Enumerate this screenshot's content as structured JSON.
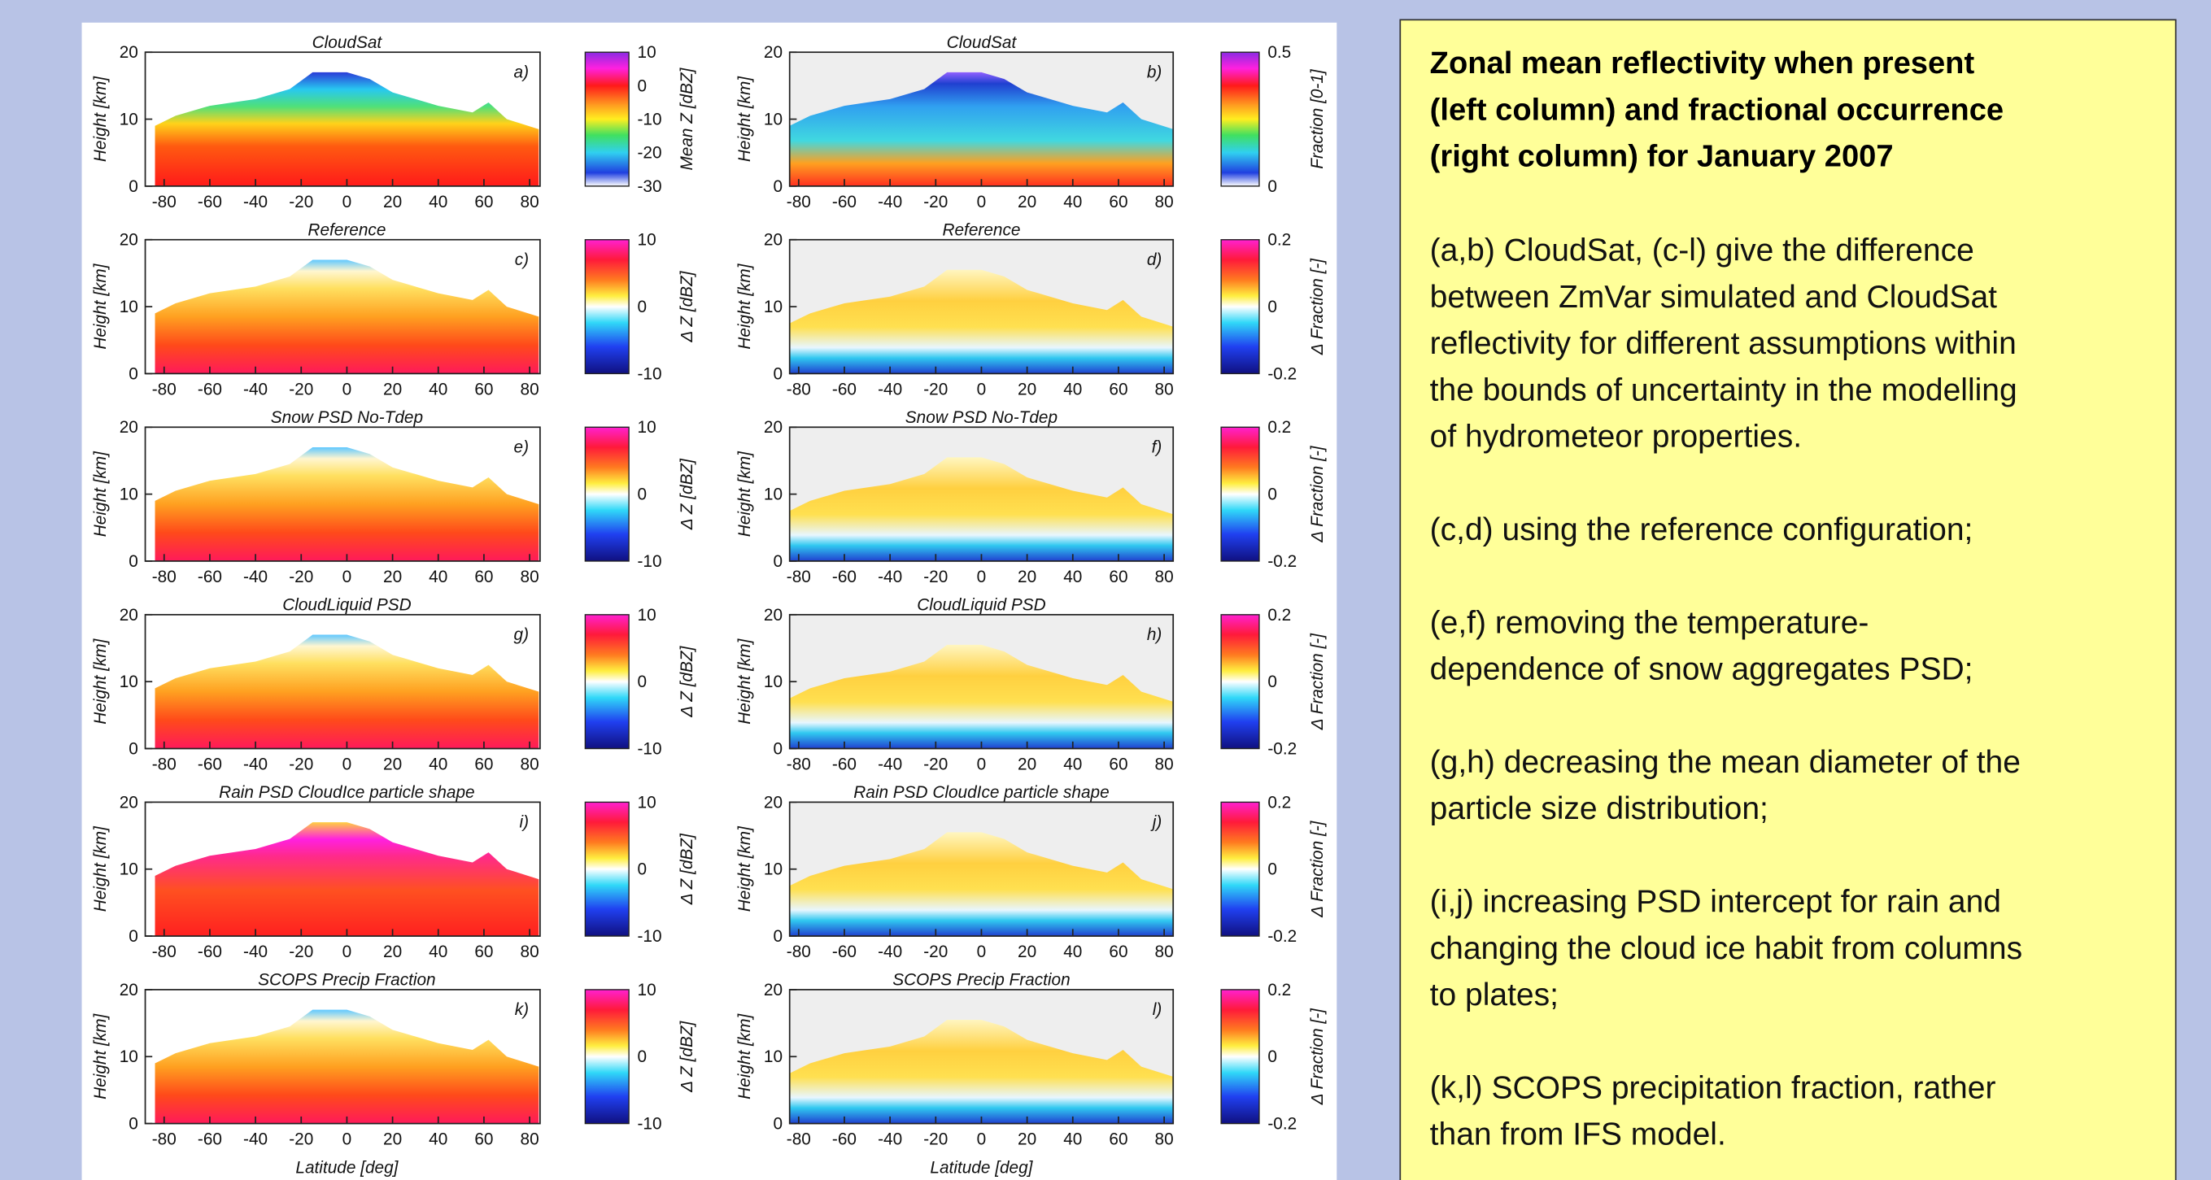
{
  "figure": {
    "panels": [
      {
        "title": "CloudSat",
        "letter": "a)",
        "colorbar_label": "Mean Z [dBZ]",
        "colorbar_ticks": [
          "10",
          "0",
          "-10",
          "-20",
          "-30"
        ]
      },
      {
        "title": "CloudSat",
        "letter": "b)",
        "colorbar_label": "Fraction [0-1]",
        "colorbar_ticks": [
          "0.5",
          "0"
        ]
      },
      {
        "title": "Reference",
        "letter": "c)",
        "colorbar_label": "Δ Z [dBZ]",
        "colorbar_ticks": [
          "10",
          "0",
          "-10"
        ]
      },
      {
        "title": "Reference",
        "letter": "d)",
        "colorbar_label": "Δ Fraction [-]",
        "colorbar_ticks": [
          "0.2",
          "0",
          "-0.2"
        ]
      },
      {
        "title": "Snow PSD No-Tdep",
        "letter": "e)",
        "colorbar_label": "Δ Z [dBZ]",
        "colorbar_ticks": [
          "10",
          "0",
          "-10"
        ]
      },
      {
        "title": "Snow PSD No-Tdep",
        "letter": "f)",
        "colorbar_label": "Δ Fraction [-]",
        "colorbar_ticks": [
          "0.2",
          "0",
          "-0.2"
        ]
      },
      {
        "title": "CloudLiquid PSD",
        "letter": "g)",
        "colorbar_label": "Δ Z [dBZ]",
        "colorbar_ticks": [
          "10",
          "0",
          "-10"
        ]
      },
      {
        "title": "CloudLiquid PSD",
        "letter": "h)",
        "colorbar_label": "Δ Fraction [-]",
        "colorbar_ticks": [
          "0.2",
          "0",
          "-0.2"
        ]
      },
      {
        "title": "Rain PSD CloudIce particle shape",
        "letter": "i)",
        "colorbar_label": "Δ Z [dBZ]",
        "colorbar_ticks": [
          "10",
          "0",
          "-10"
        ]
      },
      {
        "title": "Rain PSD CloudIce particle shape",
        "letter": "j)",
        "colorbar_label": "Δ Fraction [-]",
        "colorbar_ticks": [
          "0.2",
          "0",
          "-0.2"
        ]
      },
      {
        "title": "SCOPS Precip Fraction",
        "letter": "k)",
        "colorbar_label": "Δ Z [dBZ]",
        "colorbar_ticks": [
          "10",
          "0",
          "-10"
        ]
      },
      {
        "title": "SCOPS Precip Fraction",
        "letter": "l)",
        "colorbar_label": "Δ Fraction [-]",
        "colorbar_ticks": [
          "0.2",
          "0",
          "-0.2"
        ]
      }
    ],
    "ylabel": "Height [km]",
    "yticks": [
      "20",
      "10",
      "0"
    ],
    "xticks": [
      "-80",
      "-60",
      "-40",
      "-20",
      "0",
      "20",
      "40",
      "60",
      "80"
    ],
    "xlabel": "Latitude [deg]"
  },
  "text_box": {
    "heading_lines": [
      "Zonal mean reflectivity when present",
      "(left column) and fractional occurrence",
      "(right column) for January 2007"
    ],
    "paragraphs": [
      [
        "(a,b) CloudSat, (c-l) give the difference",
        "between ZmVar simulated and CloudSat",
        "reflectivity for different assumptions within",
        "the bounds of uncertainty in the modelling",
        "of hydrometeor properties."
      ],
      [
        "(c,d) using the reference configuration;"
      ],
      [
        "(e,f) removing the temperature-",
        "dependence of snow aggregates PSD;"
      ],
      [
        "(g,h) decreasing the mean diameter of the",
        "particle size distribution;"
      ],
      [
        "(i,j) increasing PSD intercept for rain and",
        "changing the cloud ice habit from columns",
        "to plates;"
      ],
      [
        "(k,l) SCOPS precipitation fraction, rather",
        "than from IFS model."
      ]
    ]
  }
}
